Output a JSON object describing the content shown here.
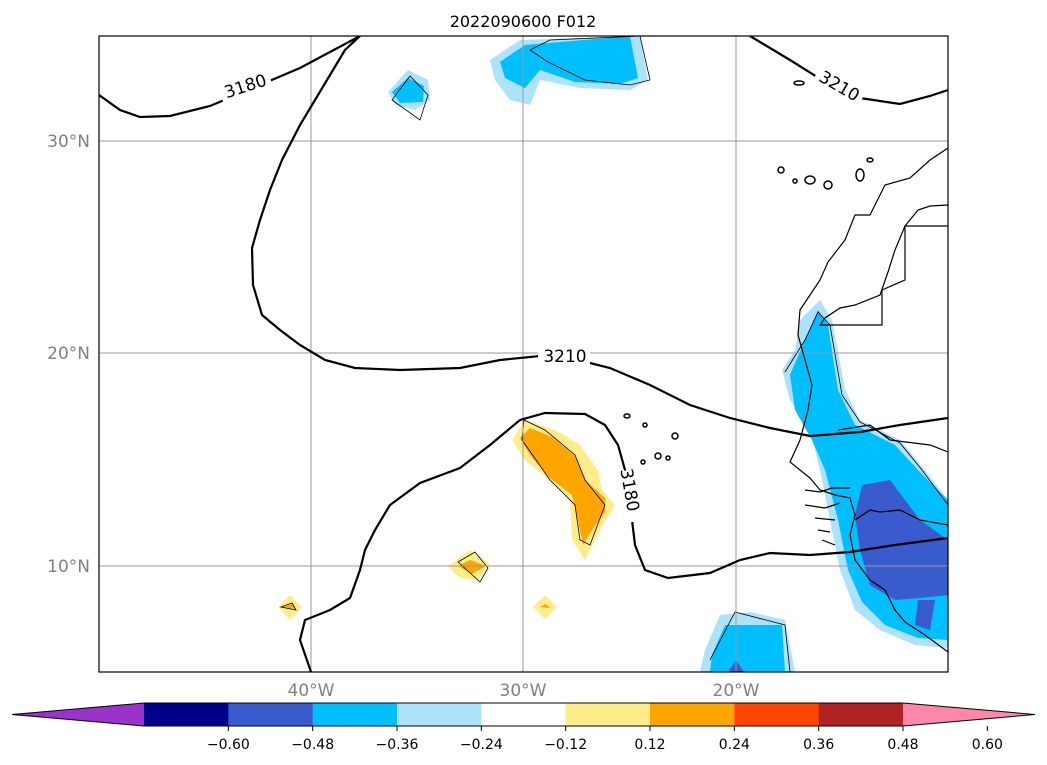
{
  "title": "2022090600 F012",
  "map": {
    "latitude_labels": [
      "30°N",
      "20°N",
      "10°N"
    ],
    "longitude_labels": [
      "40°W",
      "30°W",
      "20°W"
    ],
    "contour_labels": [
      "3180",
      "3210",
      "3210",
      "3180"
    ],
    "gridlines": true
  },
  "colorbar": {
    "ticks": [
      "−0.60",
      "−0.48",
      "−0.36",
      "−0.24",
      "−0.12",
      "0.12",
      "0.24",
      "0.36",
      "0.48",
      "0.60"
    ],
    "colors": [
      "#9933cc",
      "#00008b",
      "#3a5bcd",
      "#00bfff",
      "#aee2fa",
      "#ffffff",
      "#ffec8b",
      "#ffa500",
      "#ff4500",
      "#b22222",
      "#ff88aa"
    ],
    "extend": "both"
  },
  "shading_colors": {
    "light_blue": "#aee2fa",
    "blue": "#00bfff",
    "dark_blue": "#3a5bcd",
    "light_yellow": "#ffec8b",
    "orange": "#ffa500"
  }
}
